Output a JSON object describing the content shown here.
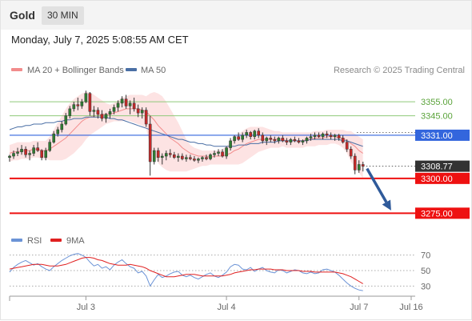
{
  "header": {
    "symbol": "Gold",
    "timeframe": "30 MIN",
    "datetime": "Monday, July 7, 2025 5:08:55 AM CET"
  },
  "legend": {
    "ma20": "MA 20 + Bollinger Bands",
    "ma50": "MA 50",
    "rsi": "RSI",
    "ma9": "9MA",
    "copyright": "Research © 2025 Trading Central"
  },
  "colors": {
    "bullish": "#2e7d32",
    "bearish": "#c62828",
    "bollinger_band": "#fcd9d9",
    "ma20": "#f28c8c",
    "ma50": "#4a6fa5",
    "resistance": "#8fc97a",
    "pivot": "#3366dd",
    "support": "#ee1111",
    "arrow": "#2f5a9a",
    "rsi": "#6b93d6",
    "rsi_ma": "#e02020"
  },
  "chart_data": [
    {
      "type": "candlestick",
      "title": "Gold",
      "timeframe": "30 MIN",
      "ylim": [
        3266,
        3362
      ],
      "xlim": [
        0,
        101
      ],
      "x_ticks": [
        {
          "label": "Jul 3",
          "x": 19
        },
        {
          "label": "Jul 4",
          "x": 54
        },
        {
          "label": "Jul 7",
          "x": 87
        },
        {
          "label": "Jul 16",
          "x": 100
        }
      ],
      "candles": [
        [
          3315,
          3317,
          3312,
          3316
        ],
        [
          3316,
          3320,
          3314,
          3318
        ],
        [
          3318,
          3322,
          3316,
          3319
        ],
        [
          3319,
          3324,
          3317,
          3321
        ],
        [
          3321,
          3323,
          3315,
          3317
        ],
        [
          3317,
          3320,
          3313,
          3318
        ],
        [
          3318,
          3324,
          3316,
          3322
        ],
        [
          3322,
          3326,
          3319,
          3320
        ],
        [
          3320,
          3321,
          3313,
          3315
        ],
        [
          3315,
          3322,
          3313,
          3320
        ],
        [
          3320,
          3328,
          3319,
          3326
        ],
        [
          3326,
          3334,
          3325,
          3332
        ],
        [
          3332,
          3337,
          3330,
          3335
        ],
        [
          3335,
          3341,
          3333,
          3339
        ],
        [
          3339,
          3347,
          3338,
          3345
        ],
        [
          3345,
          3352,
          3343,
          3350
        ],
        [
          3350,
          3355,
          3348,
          3353
        ],
        [
          3353,
          3358,
          3349,
          3352
        ],
        [
          3352,
          3357,
          3350,
          3355
        ],
        [
          3355,
          3363,
          3354,
          3361
        ],
        [
          3361,
          3362,
          3345,
          3348
        ],
        [
          3348,
          3352,
          3344,
          3349
        ],
        [
          3349,
          3351,
          3343,
          3346
        ],
        [
          3346,
          3349,
          3341,
          3343
        ],
        [
          3343,
          3347,
          3340,
          3346
        ],
        [
          3346,
          3350,
          3343,
          3348
        ],
        [
          3348,
          3353,
          3346,
          3351
        ],
        [
          3351,
          3356,
          3348,
          3354
        ],
        [
          3354,
          3359,
          3351,
          3357
        ],
        [
          3357,
          3360,
          3350,
          3352
        ],
        [
          3352,
          3356,
          3346,
          3354
        ],
        [
          3354,
          3358,
          3348,
          3350
        ],
        [
          3350,
          3353,
          3344,
          3347
        ],
        [
          3347,
          3351,
          3343,
          3349
        ],
        [
          3349,
          3351,
          3337,
          3339
        ],
        [
          3339,
          3345,
          3302,
          3312
        ],
        [
          3312,
          3322,
          3310,
          3320
        ],
        [
          3320,
          3322,
          3312,
          3315
        ],
        [
          3315,
          3318,
          3310,
          3316
        ],
        [
          3316,
          3320,
          3313,
          3318
        ],
        [
          3318,
          3321,
          3315,
          3317
        ],
        [
          3317,
          3319,
          3314,
          3315
        ],
        [
          3315,
          3318,
          3312,
          3316
        ],
        [
          3316,
          3318,
          3313,
          3314
        ],
        [
          3314,
          3317,
          3312,
          3315
        ],
        [
          3315,
          3317,
          3313,
          3314
        ],
        [
          3314,
          3316,
          3312,
          3313
        ],
        [
          3313,
          3315,
          3311,
          3314
        ],
        [
          3314,
          3316,
          3312,
          3315
        ],
        [
          3315,
          3317,
          3313,
          3314
        ],
        [
          3314,
          3318,
          3313,
          3317
        ],
        [
          3317,
          3320,
          3315,
          3318
        ],
        [
          3318,
          3321,
          3316,
          3319
        ],
        [
          3319,
          3321,
          3315,
          3316
        ],
        [
          3316,
          3323,
          3314,
          3322
        ],
        [
          3322,
          3329,
          3320,
          3327
        ],
        [
          3327,
          3331,
          3325,
          3330
        ],
        [
          3330,
          3333,
          3327,
          3328
        ],
        [
          3328,
          3333,
          3326,
          3331
        ],
        [
          3331,
          3335,
          3329,
          3333
        ],
        [
          3333,
          3334,
          3328,
          3330
        ],
        [
          3330,
          3335,
          3328,
          3334
        ],
        [
          3334,
          3336,
          3329,
          3331
        ],
        [
          3331,
          3333,
          3325,
          3327
        ],
        [
          3327,
          3330,
          3324,
          3329
        ],
        [
          3329,
          3331,
          3326,
          3328
        ],
        [
          3328,
          3330,
          3325,
          3327
        ],
        [
          3327,
          3330,
          3325,
          3329
        ],
        [
          3329,
          3331,
          3326,
          3327
        ],
        [
          3327,
          3329,
          3324,
          3326
        ],
        [
          3326,
          3329,
          3324,
          3328
        ],
        [
          3328,
          3330,
          3326,
          3327
        ],
        [
          3327,
          3329,
          3325,
          3326
        ],
        [
          3326,
          3328,
          3324,
          3327
        ],
        [
          3327,
          3330,
          3325,
          3329
        ],
        [
          3329,
          3332,
          3327,
          3330
        ],
        [
          3330,
          3333,
          3328,
          3331
        ],
        [
          3331,
          3333,
          3329,
          3330
        ],
        [
          3330,
          3333,
          3328,
          3332
        ],
        [
          3332,
          3334,
          3329,
          3331
        ],
        [
          3331,
          3333,
          3328,
          3330
        ],
        [
          3330,
          3332,
          3327,
          3331
        ],
        [
          3331,
          3332,
          3327,
          3329
        ],
        [
          3329,
          3331,
          3325,
          3326
        ],
        [
          3326,
          3328,
          3319,
          3321
        ],
        [
          3321,
          3323,
          3314,
          3316
        ],
        [
          3316,
          3318,
          3303,
          3306
        ],
        [
          3306,
          3313,
          3304,
          3310
        ],
        [
          3310,
          3312,
          3305,
          3308.77
        ]
      ],
      "bollinger_mid": [
        3318,
        3319,
        3319,
        3320,
        3320,
        3320,
        3321,
        3321,
        3320,
        3320,
        3321,
        3323,
        3325,
        3327,
        3329,
        3332,
        3335,
        3338,
        3341,
        3343,
        3344,
        3345,
        3345,
        3346,
        3346,
        3346,
        3347,
        3348,
        3349,
        3350,
        3350,
        3350,
        3350,
        3349,
        3348,
        3345,
        3342,
        3338,
        3335,
        3332,
        3329,
        3327,
        3325,
        3322,
        3320,
        3318,
        3317,
        3316,
        3316,
        3316,
        3315,
        3316,
        3316,
        3316,
        3317,
        3318,
        3320,
        3321,
        3323,
        3325,
        3326,
        3327,
        3328,
        3328,
        3328,
        3328,
        3328,
        3328,
        3328,
        3327,
        3327,
        3327,
        3327,
        3327,
        3328,
        3328,
        3329,
        3329,
        3329,
        3330,
        3330,
        3330,
        3329,
        3329,
        3327,
        3325,
        3323,
        3320,
        3318
      ],
      "bollinger_upper": [
        3324,
        3325,
        3326,
        3326,
        3326,
        3326,
        3327,
        3327,
        3327,
        3327,
        3330,
        3335,
        3340,
        3345,
        3350,
        3354,
        3357,
        3359,
        3361,
        3362,
        3362,
        3360,
        3358,
        3356,
        3354,
        3353,
        3354,
        3356,
        3358,
        3359,
        3360,
        3360,
        3360,
        3360,
        3359,
        3361,
        3362,
        3361,
        3359,
        3355,
        3350,
        3345,
        3340,
        3334,
        3328,
        3324,
        3322,
        3321,
        3320,
        3320,
        3320,
        3320,
        3320,
        3321,
        3323,
        3326,
        3330,
        3332,
        3334,
        3336,
        3337,
        3337,
        3337,
        3337,
        3336,
        3335,
        3334,
        3334,
        3333,
        3333,
        3333,
        3333,
        3333,
        3333,
        3333,
        3333,
        3334,
        3334,
        3334,
        3335,
        3335,
        3335,
        3335,
        3335,
        3334,
        3334,
        3332,
        3330,
        3328
      ],
      "bollinger_lower": [
        3312,
        3313,
        3313,
        3314,
        3314,
        3314,
        3315,
        3315,
        3314,
        3314,
        3313,
        3313,
        3313,
        3313,
        3314,
        3316,
        3318,
        3321,
        3324,
        3328,
        3331,
        3333,
        3335,
        3337,
        3339,
        3340,
        3341,
        3341,
        3341,
        3342,
        3341,
        3340,
        3339,
        3338,
        3336,
        3323,
        3316,
        3311,
        3308,
        3306,
        3305,
        3305,
        3305,
        3305,
        3305,
        3306,
        3307,
        3308,
        3309,
        3309,
        3310,
        3310,
        3310,
        3310,
        3310,
        3310,
        3310,
        3310,
        3311,
        3313,
        3315,
        3317,
        3319,
        3320,
        3321,
        3322,
        3322,
        3322,
        3323,
        3322,
        3322,
        3322,
        3322,
        3322,
        3323,
        3323,
        3323,
        3324,
        3324,
        3324,
        3325,
        3325,
        3324,
        3322,
        3318,
        3312,
        3308,
        3304,
        3300
      ],
      "ma50": [
        3335,
        3336,
        3337,
        3337,
        3338,
        3338,
        3339,
        3339,
        3339,
        3340,
        3340,
        3340,
        3341,
        3341,
        3342,
        3342,
        3343,
        3343,
        3343,
        3344,
        3344,
        3344,
        3344,
        3344,
        3344,
        3343,
        3343,
        3342,
        3342,
        3341,
        3340,
        3339,
        3338,
        3337,
        3336,
        3335,
        3334,
        3333,
        3332,
        3331,
        3330,
        3329,
        3328,
        3328,
        3327,
        3326,
        3326,
        3325,
        3325,
        3324,
        3324,
        3323,
        3323,
        3323,
        3323,
        3323,
        3323,
        3324,
        3324,
        3324,
        3325,
        3325,
        3325,
        3326,
        3326,
        3326,
        3326,
        3327,
        3327,
        3327,
        3327,
        3327,
        3327,
        3327,
        3327,
        3328,
        3328,
        3328,
        3328,
        3328,
        3328,
        3328,
        3328,
        3327,
        3327,
        3326,
        3325,
        3324,
        3323
      ],
      "levels": [
        {
          "value": 3355.0,
          "label": "3355.00",
          "kind": "resistance"
        },
        {
          "value": 3345.0,
          "label": "3345.00",
          "kind": "resistance"
        },
        {
          "value": 3331.0,
          "label": "3331.00",
          "kind": "pivot"
        },
        {
          "value": 3308.77,
          "label": "3308.77",
          "kind": "last"
        },
        {
          "value": 3300.0,
          "label": "3300.00",
          "kind": "support"
        },
        {
          "value": 3275.0,
          "label": "3275.00",
          "kind": "support"
        }
      ],
      "projection_arrow": {
        "from": {
          "x": 89,
          "y": 3307
        },
        "to": {
          "x": 95,
          "y": 3277
        }
      },
      "legend": [
        "MA 20 + Bollinger Bands",
        "MA 50"
      ],
      "grid": false
    },
    {
      "type": "line",
      "title": "RSI",
      "ylim": [
        20,
        80
      ],
      "y_ticks": [
        70,
        50,
        30
      ],
      "series": [
        {
          "name": "RSI",
          "values": [
            48,
            54,
            58,
            61,
            63,
            60,
            57,
            59,
            55,
            52,
            50,
            55,
            59,
            63,
            66,
            69,
            71,
            72,
            70,
            67,
            61,
            56,
            58,
            53,
            55,
            51,
            57,
            61,
            64,
            59,
            55,
            53,
            47,
            49,
            43,
            30,
            38,
            45,
            41,
            43,
            46,
            48,
            49,
            44,
            42,
            44,
            41,
            39,
            42,
            45,
            47,
            43,
            41,
            44,
            48,
            55,
            58,
            57,
            52,
            51,
            54,
            49,
            52,
            54,
            50,
            48,
            47,
            51,
            50,
            47,
            49,
            51,
            50,
            47,
            46,
            48,
            46,
            47,
            51,
            52,
            50,
            48,
            44,
            39,
            34,
            30,
            27,
            25,
            24
          ]
        },
        {
          "name": "9MA",
          "values": [
            52,
            53,
            54,
            55,
            56,
            57,
            58,
            58,
            58,
            57,
            56,
            56,
            56,
            57,
            58,
            60,
            62,
            64,
            66,
            67,
            67,
            66,
            64,
            63,
            61,
            59,
            58,
            57,
            57,
            57,
            58,
            57,
            56,
            55,
            53,
            50,
            48,
            46,
            44,
            42,
            42,
            42,
            43,
            44,
            45,
            45,
            45,
            44,
            43,
            43,
            43,
            43,
            43,
            43,
            44,
            45,
            47,
            48,
            49,
            50,
            51,
            51,
            52,
            52,
            52,
            52,
            51,
            51,
            51,
            50,
            50,
            50,
            50,
            49,
            49,
            49,
            48,
            48,
            48,
            48,
            48,
            48,
            47,
            46,
            44,
            42,
            39,
            36,
            33
          ]
        }
      ],
      "legend": [
        "RSI",
        "9MA"
      ]
    }
  ]
}
